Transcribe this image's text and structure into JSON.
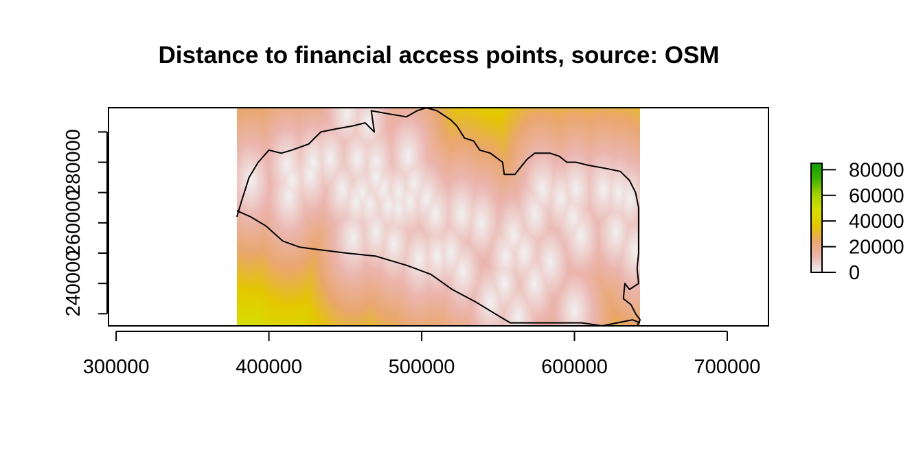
{
  "chart_data": {
    "type": "heatmap",
    "title": "Distance to financial access points, source: OSM",
    "xlabel": "",
    "ylabel": "",
    "xlim": [
      295000,
      727000
    ],
    "ylim": [
      226000,
      298000
    ],
    "x_ticks": [
      300000,
      400000,
      500000,
      600000,
      700000
    ],
    "y_ticks": [
      230000,
      240000,
      250000,
      260000,
      270000,
      280000,
      290000
    ],
    "y_tick_labels": [
      {
        "value": 240000,
        "label": "240000"
      },
      {
        "value": 260000,
        "label": "260000"
      },
      {
        "value": 280000,
        "label": "280000"
      }
    ],
    "raster_extent": {
      "x": [
        379000,
        643000
      ],
      "y": [
        226000,
        298000
      ]
    },
    "colorbar": {
      "range": [
        0,
        85000
      ],
      "ticks": [
        0,
        20000,
        40000,
        60000,
        80000
      ],
      "colors": [
        "#f1f1f1",
        "#ebb6b0",
        "#e9a76e",
        "#e4c700",
        "#d7e000",
        "#a4d400",
        "#3fb300",
        "#0e9e00"
      ]
    },
    "access_points": [
      [
        451,
        296
      ],
      [
        465,
        293
      ],
      [
        429,
        280
      ],
      [
        440,
        281
      ],
      [
        458,
        281
      ],
      [
        470,
        280
      ],
      [
        491,
        282
      ],
      [
        412,
        279
      ],
      [
        415,
        274
      ],
      [
        427,
        276
      ],
      [
        448,
        271
      ],
      [
        461,
        270
      ],
      [
        475,
        271
      ],
      [
        485,
        270
      ],
      [
        495,
        273
      ],
      [
        470,
        275
      ],
      [
        388,
        274
      ],
      [
        413,
        269
      ],
      [
        457,
        267
      ],
      [
        466,
        266
      ],
      [
        478,
        266
      ],
      [
        485,
        265
      ],
      [
        492,
        267
      ],
      [
        503,
        268
      ],
      [
        509,
        263
      ],
      [
        526,
        263
      ],
      [
        539,
        260
      ],
      [
        560,
        256
      ],
      [
        574,
        263
      ],
      [
        599,
        262
      ],
      [
        604,
        256
      ],
      [
        627,
        257
      ],
      [
        619,
        271
      ],
      [
        629,
        270
      ],
      [
        636,
        268
      ],
      [
        591,
        268
      ],
      [
        601,
        271
      ],
      [
        579,
        271
      ],
      [
        555,
        249
      ],
      [
        567,
        250
      ],
      [
        584,
        247
      ],
      [
        574,
        240
      ],
      [
        554,
        240
      ],
      [
        545,
        234
      ],
      [
        563,
        229
      ],
      [
        498,
        248
      ],
      [
        510,
        249
      ],
      [
        519,
        250
      ],
      [
        482,
        253
      ],
      [
        470,
        257
      ],
      [
        455,
        255
      ],
      [
        527,
        244
      ],
      [
        640,
        251
      ],
      [
        600,
        231
      ]
    ],
    "border": {
      "country": [
        [
          379,
          262
        ],
        [
          382,
          267
        ],
        [
          387,
          275
        ],
        [
          393,
          280
        ],
        [
          400,
          284
        ],
        [
          408,
          283
        ],
        [
          415,
          284
        ],
        [
          426,
          286
        ],
        [
          434,
          290
        ],
        [
          444,
          291
        ],
        [
          455,
          292
        ],
        [
          463,
          293
        ],
        [
          469,
          290
        ],
        [
          467,
          297
        ],
        [
          478,
          296
        ],
        [
          490,
          295
        ],
        [
          497,
          297
        ],
        [
          503,
          298
        ],
        [
          510,
          297
        ],
        [
          519,
          294
        ],
        [
          523,
          292
        ],
        [
          528,
          288
        ],
        [
          534,
          287
        ],
        [
          538,
          284
        ],
        [
          545,
          283
        ],
        [
          553,
          280
        ],
        [
          554,
          276
        ],
        [
          561,
          276
        ],
        [
          569,
          281
        ],
        [
          574,
          283
        ],
        [
          584,
          283
        ],
        [
          590,
          282
        ],
        [
          595,
          280
        ],
        [
          601,
          280
        ],
        [
          609,
          279
        ],
        [
          620,
          278
        ],
        [
          630,
          277
        ],
        [
          636,
          274
        ],
        [
          640,
          270
        ],
        [
          642,
          265
        ],
        [
          642,
          258
        ],
        [
          642,
          250
        ],
        [
          641,
          245
        ],
        [
          642,
          240
        ],
        [
          636,
          238
        ],
        [
          633,
          240
        ],
        [
          632,
          235
        ],
        [
          637,
          233
        ],
        [
          640,
          230
        ],
        [
          643,
          228
        ],
        [
          641,
          226
        ]
      ],
      "coast": [
        [
          379,
          264
        ],
        [
          388,
          262
        ],
        [
          398,
          259
        ],
        [
          409,
          254
        ],
        [
          420,
          252
        ],
        [
          435,
          251
        ],
        [
          451,
          250
        ],
        [
          470,
          249
        ],
        [
          490,
          246
        ],
        [
          506,
          243
        ],
        [
          520,
          238
        ],
        [
          535,
          234
        ],
        [
          548,
          230
        ],
        [
          558,
          227
        ],
        [
          572,
          227
        ],
        [
          590,
          227
        ],
        [
          605,
          227
        ],
        [
          618,
          226
        ],
        [
          628,
          227
        ],
        [
          638,
          228
        ],
        [
          643,
          227
        ]
      ]
    }
  }
}
